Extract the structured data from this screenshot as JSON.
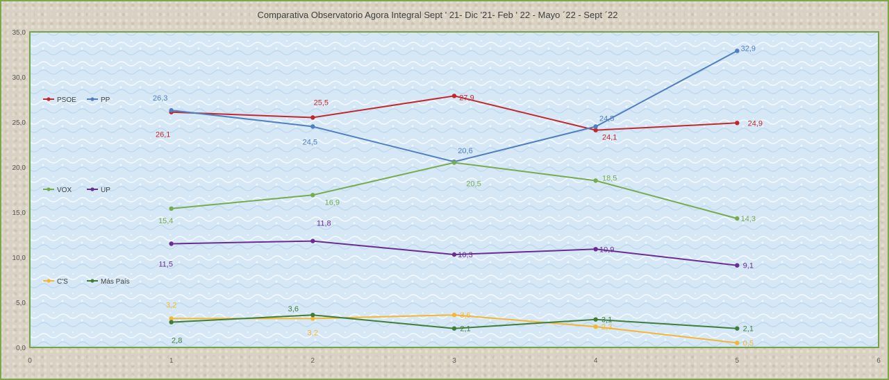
{
  "chart_data": {
    "type": "line",
    "title": "Comparativa Observatorio Agora Integral  Sept ' 21- Dic '21- Feb ' 22 - Mayo ´22 - Sept ´22",
    "xlabel": "",
    "ylabel": "",
    "xlim": [
      0,
      6
    ],
    "ylim": [
      0,
      35
    ],
    "x_ticks": [
      "0",
      "1",
      "2",
      "3",
      "4",
      "5",
      "6"
    ],
    "y_ticks": [
      "0,0",
      "5,0",
      "10,0",
      "15,0",
      "20,0",
      "25,0",
      "30,0",
      "35,0"
    ],
    "x": [
      1,
      2,
      3,
      4,
      5
    ],
    "grid": false,
    "legend_position": "left",
    "series": [
      {
        "name": "PSOE",
        "color": "#c0282d",
        "values": [
          26.1,
          25.5,
          27.9,
          24.1,
          24.9
        ],
        "labels": [
          "26,1",
          "25,5",
          "27,9",
          "24,1",
          "24,9"
        ]
      },
      {
        "name": "PP",
        "color": "#4f7fbf",
        "values": [
          26.3,
          24.5,
          20.6,
          24.5,
          32.9
        ],
        "labels": [
          "26,3",
          "24,5",
          "20,6",
          "24,5",
          "32,9"
        ]
      },
      {
        "name": "VOX",
        "color": "#77ab4f",
        "values": [
          15.4,
          16.9,
          20.5,
          18.5,
          14.3
        ],
        "labels": [
          "15,4",
          "16,9",
          "20,5",
          "18,5",
          "14,3"
        ]
      },
      {
        "name": "UP",
        "color": "#6a2c91",
        "values": [
          11.5,
          11.8,
          10.3,
          10.9,
          9.1
        ],
        "labels": [
          "11,5",
          "11,8",
          "10,3",
          "10,9",
          "9,1"
        ]
      },
      {
        "name": "C'S",
        "color": "#f5b731",
        "values": [
          3.2,
          3.2,
          3.6,
          2.3,
          0.5
        ],
        "labels": [
          "3,2",
          "3,2",
          "3,6",
          "2,3",
          "0,5"
        ]
      },
      {
        "name": "Más País",
        "color": "#3f7e3a",
        "values": [
          2.8,
          3.6,
          2.1,
          3.1,
          2.1
        ],
        "labels": [
          "2,8",
          "3,6",
          "2,1",
          "3,1",
          "2,1"
        ]
      }
    ]
  }
}
